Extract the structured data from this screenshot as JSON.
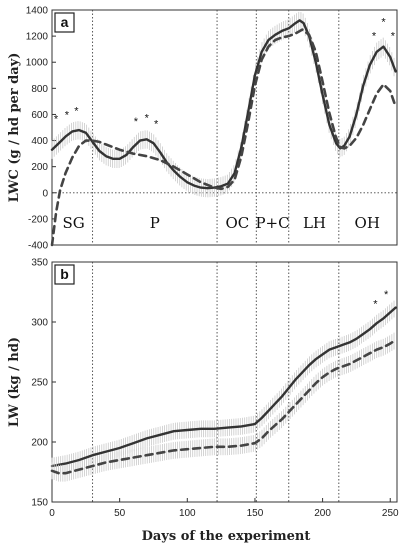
{
  "chart_data": [
    {
      "panel": "a",
      "type": "line",
      "ylabel": "LWC (g / hd per day)",
      "xlabel": "",
      "xlim": [
        0,
        255
      ],
      "ylim": [
        -400,
        1400
      ],
      "yticks": [
        -400,
        -200,
        0,
        200,
        400,
        600,
        800,
        1000,
        1200,
        1400
      ],
      "xticks": [],
      "grid": false,
      "zero_line": true,
      "vlines": [
        30,
        122,
        151,
        175,
        212
      ],
      "period_labels": [
        {
          "text": "SG",
          "x": 16,
          "y": -270
        },
        {
          "text": "P",
          "x": 76,
          "y": -270
        },
        {
          "text": "OC",
          "x": 137,
          "y": -270
        },
        {
          "text": "P+C",
          "x": 163,
          "y": -270
        },
        {
          "text": "LH",
          "x": 194,
          "y": -270
        },
        {
          "text": "OH",
          "x": 233,
          "y": -270
        }
      ],
      "stars": [
        {
          "x": 3,
          "y": 540
        },
        {
          "x": 11,
          "y": 570
        },
        {
          "x": 18,
          "y": 600
        },
        {
          "x": 62,
          "y": 520
        },
        {
          "x": 70,
          "y": 545
        },
        {
          "x": 77,
          "y": 500
        },
        {
          "x": 238,
          "y": 1175
        },
        {
          "x": 245,
          "y": 1280
        },
        {
          "x": 252,
          "y": 1175
        }
      ],
      "series": [
        {
          "style": "solid",
          "x": [
            0,
            5,
            10,
            15,
            20,
            25,
            30,
            35,
            40,
            45,
            50,
            55,
            60,
            65,
            70,
            75,
            80,
            85,
            90,
            95,
            100,
            105,
            110,
            115,
            120,
            125,
            130,
            135,
            140,
            145,
            150,
            155,
            160,
            165,
            170,
            175,
            180,
            183,
            186,
            190,
            195,
            200,
            205,
            210,
            213,
            216,
            220,
            225,
            230,
            235,
            240,
            245,
            250,
            254
          ],
          "y": [
            330,
            380,
            430,
            470,
            480,
            460,
            390,
            320,
            280,
            260,
            260,
            290,
            350,
            400,
            410,
            380,
            310,
            230,
            170,
            120,
            80,
            55,
            40,
            35,
            40,
            50,
            70,
            150,
            350,
            620,
            900,
            1080,
            1170,
            1210,
            1240,
            1260,
            1300,
            1320,
            1300,
            1200,
            1000,
            750,
            520,
            380,
            340,
            360,
            430,
            600,
            820,
            980,
            1080,
            1120,
            1040,
            930
          ]
        },
        {
          "style": "dashed",
          "x": [
            0,
            3,
            6,
            10,
            15,
            20,
            25,
            30,
            35,
            40,
            50,
            60,
            70,
            80,
            90,
            100,
            110,
            120,
            125,
            130,
            135,
            140,
            145,
            150,
            155,
            160,
            165,
            170,
            175,
            180,
            185,
            190,
            195,
            200,
            205,
            210,
            213,
            216,
            220,
            225,
            230,
            235,
            240,
            245,
            250,
            254
          ],
          "y": [
            -400,
            -150,
            20,
            150,
            270,
            360,
            400,
            400,
            390,
            370,
            330,
            300,
            280,
            250,
            200,
            140,
            80,
            40,
            30,
            45,
            100,
            280,
            540,
            820,
            1020,
            1120,
            1170,
            1190,
            1200,
            1220,
            1250,
            1210,
            1080,
            850,
            610,
            420,
            350,
            340,
            360,
            420,
            520,
            640,
            760,
            830,
            780,
            660
          ]
        }
      ]
    },
    {
      "panel": "b",
      "type": "line",
      "ylabel": "LW (kg / hd)",
      "xlabel": "Days of the experiment",
      "xlim": [
        0,
        255
      ],
      "ylim": [
        150,
        350
      ],
      "yticks": [
        150,
        200,
        250,
        300,
        350
      ],
      "xticks": [
        0,
        50,
        100,
        150,
        200,
        250
      ],
      "grid": false,
      "vlines": [
        30,
        122,
        151,
        175,
        212
      ],
      "stars": [
        {
          "x": 239,
          "y": 312
        },
        {
          "x": 247,
          "y": 320
        }
      ],
      "series": [
        {
          "style": "solid",
          "x": [
            0,
            5,
            10,
            20,
            30,
            40,
            50,
            60,
            70,
            80,
            90,
            100,
            110,
            120,
            130,
            140,
            150,
            155,
            160,
            165,
            170,
            175,
            180,
            185,
            190,
            195,
            200,
            205,
            210,
            215,
            220,
            225,
            230,
            235,
            240,
            245,
            250,
            254
          ],
          "y": [
            180,
            181,
            182,
            185,
            189,
            192,
            195,
            199,
            203,
            206,
            209,
            210,
            211,
            211,
            212,
            213,
            215,
            220,
            226,
            232,
            238,
            245,
            252,
            258,
            264,
            269,
            273,
            277,
            279,
            281,
            283,
            286,
            290,
            294,
            299,
            303,
            308,
            312
          ]
        },
        {
          "style": "dashed",
          "x": [
            0,
            5,
            10,
            20,
            30,
            40,
            50,
            60,
            70,
            80,
            90,
            100,
            110,
            120,
            130,
            140,
            150,
            155,
            160,
            165,
            170,
            175,
            180,
            185,
            190,
            195,
            200,
            205,
            210,
            215,
            220,
            225,
            230,
            235,
            240,
            245,
            250,
            254
          ],
          "y": [
            176,
            174,
            174,
            177,
            180,
            183,
            185,
            187,
            189,
            191,
            193,
            194,
            195,
            196,
            196,
            197,
            199,
            203,
            209,
            214,
            219,
            225,
            231,
            237,
            243,
            249,
            254,
            258,
            261,
            263,
            265,
            268,
            271,
            274,
            277,
            279,
            282,
            285
          ]
        }
      ]
    }
  ]
}
